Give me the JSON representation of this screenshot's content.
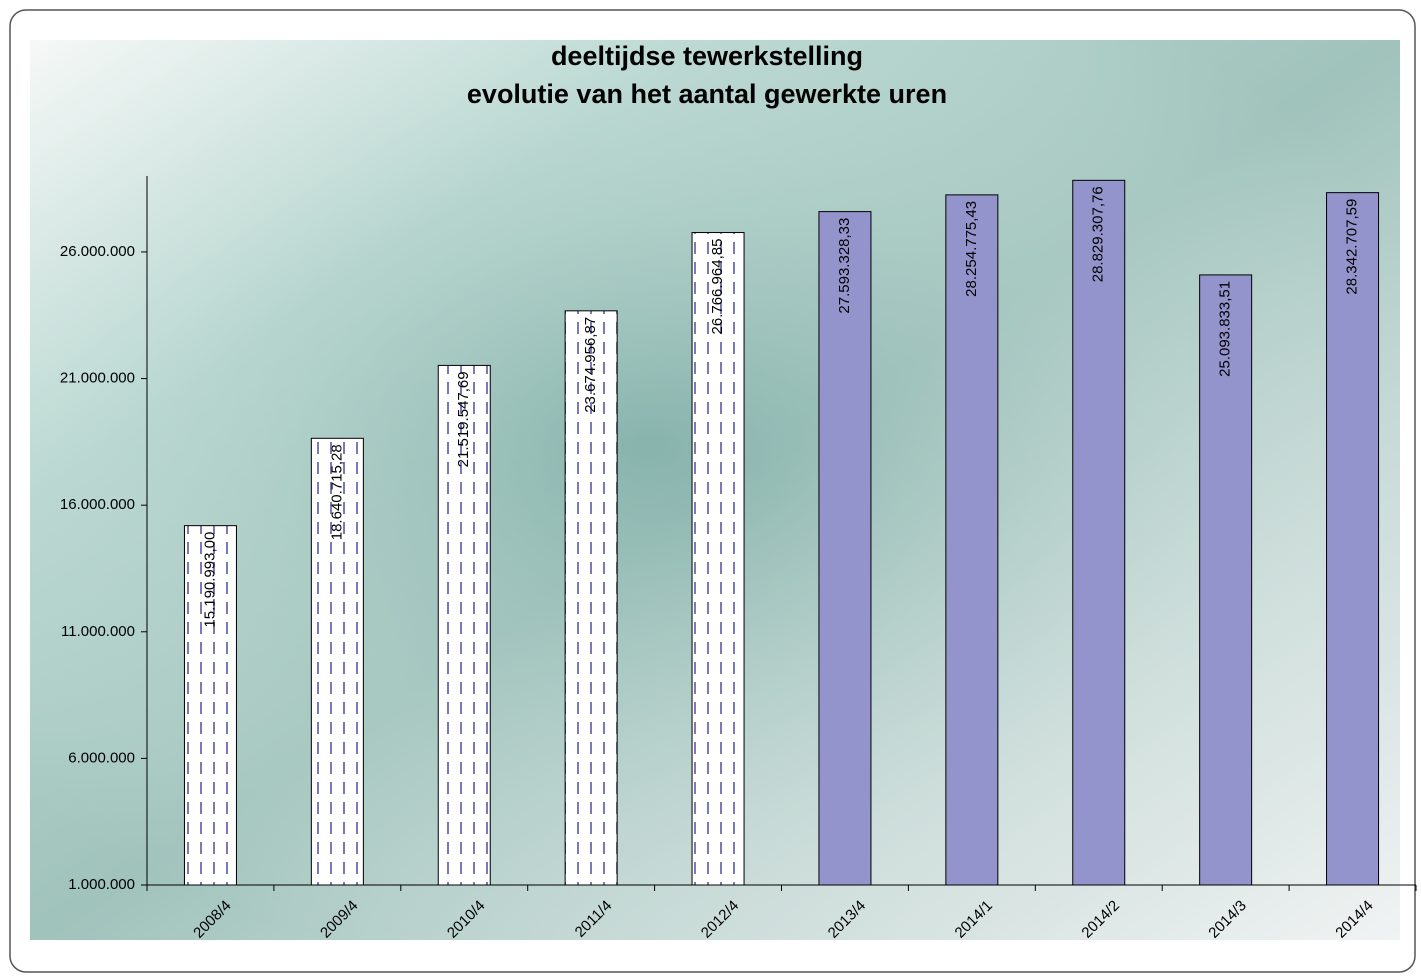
{
  "chart_data": {
    "type": "bar",
    "title": "deeltijdse tewerkstelling",
    "subtitle": "evolutie van het aantal gewerkte uren",
    "categories": [
      "2008/4",
      "2009/4",
      "2010/4",
      "2011/4",
      "2012/4",
      "2013/4",
      "2014/1",
      "2014/2",
      "2014/3",
      "2014/4"
    ],
    "values": [
      15190993.0,
      18640715.28,
      21519547.69,
      23674956.87,
      26766964.85,
      27593328.33,
      28254775.43,
      28829307.76,
      25093833.51,
      28342707.59
    ],
    "value_labels": [
      "15.190.993,00",
      "18.640.715,28",
      "21.519.547,69",
      "23.674.956,87",
      "26.766.964,85",
      "27.593.328,33",
      "28.254.775,43",
      "28.829.307,76",
      "25.093.833,51",
      "28.342.707,59"
    ],
    "colors": [
      "#ffffff",
      "#ffffff",
      "#ffffff",
      "#ffffff",
      "#ffffff",
      "#9494cc",
      "#9494cc",
      "#9494cc",
      "#9494cc",
      "#9494cc"
    ],
    "hatched": [
      true,
      true,
      true,
      true,
      true,
      false,
      false,
      false,
      false,
      false
    ],
    "hatch_color": "#7a7ab8",
    "ylim": [
      1000000,
      29000000
    ],
    "yticks": [
      {
        "value": 1000000,
        "label": "1.000.000"
      },
      {
        "value": 6000000,
        "label": "6.000.000"
      },
      {
        "value": 11000000,
        "label": "11.000.000"
      },
      {
        "value": 16000000,
        "label": "16.000.000"
      },
      {
        "value": 21000000,
        "label": "21.000.000"
      },
      {
        "value": 26000000,
        "label": "26.000.000"
      }
    ],
    "grid": false
  }
}
